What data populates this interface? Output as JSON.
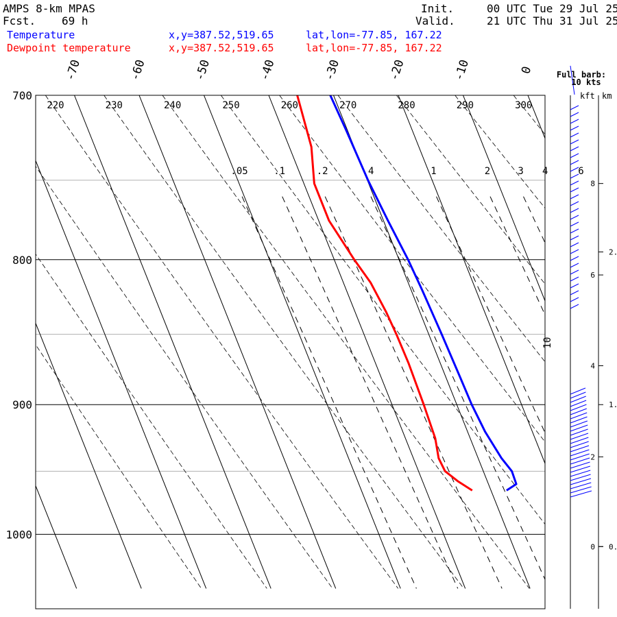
{
  "header": {
    "model": "AMPS 8-km MPAS",
    "fcst_label": "Fcst.",
    "fcst_hours": "69 h",
    "init_label": "Init.",
    "init_time": "00 UTC Tue 29 Jul 25",
    "valid_label": "Valid.",
    "valid_time": "21 UTC Thu 31 Jul 25"
  },
  "legend": [
    {
      "name": "Temperature",
      "xy": "x,y=387.52,519.65",
      "latlon": "lat,lon=-77.85, 167.22",
      "color": "#0000ff"
    },
    {
      "name": "Dewpoint temperature",
      "xy": "x,y=387.52,519.65",
      "latlon": "lat,lon=-77.85, 167.22",
      "color": "#ff0000"
    }
  ],
  "barb_note": {
    "line1": "Full barb:",
    "line2": "10 kts"
  },
  "alt_axes": {
    "kft_label": "kft",
    "km_label": "km"
  },
  "chart_data": {
    "type": "line",
    "diagram": "skew-T log-P",
    "pressure_axis": {
      "ticks": [
        700,
        800,
        900,
        1000
      ],
      "range": [
        1045,
        700
      ],
      "scale": "log"
    },
    "temp_ticks": [
      -70,
      -60,
      -50,
      -40,
      -30,
      -20,
      -10,
      0
    ],
    "dry_adiabat_labels": [
      220,
      230,
      240,
      250,
      260,
      270,
      280,
      290,
      300
    ],
    "mixing_ratio_labels": [
      ".05",
      ".1",
      ".2",
      ".4",
      "1",
      "2",
      "3",
      "4",
      "6",
      "10"
    ],
    "series": [
      {
        "name": "Temperature",
        "color": "#0000ff",
        "points": [
          [
            700,
            -30.5
          ],
          [
            720,
            -30.2
          ],
          [
            750,
            -29.9
          ],
          [
            775,
            -29.3
          ],
          [
            800,
            -28.6
          ],
          [
            820,
            -28.3
          ],
          [
            850,
            -28.0
          ],
          [
            880,
            -27.8
          ],
          [
            900,
            -27.7
          ],
          [
            920,
            -27.3
          ],
          [
            940,
            -26.4
          ],
          [
            950,
            -25.6
          ],
          [
            960,
            -25.7
          ],
          [
            965,
            -27.6
          ]
        ]
      },
      {
        "name": "Dewpoint temperature",
        "color": "#ff0000",
        "points": [
          [
            700,
            -35.6
          ],
          [
            730,
            -36.6
          ],
          [
            752,
            -38.4
          ],
          [
            775,
            -38.4
          ],
          [
            800,
            -36.9
          ],
          [
            815,
            -35.8
          ],
          [
            835,
            -35.2
          ],
          [
            850,
            -35.0
          ],
          [
            870,
            -34.9
          ],
          [
            900,
            -35.1
          ],
          [
            925,
            -35.4
          ],
          [
            940,
            -36.1
          ],
          [
            950,
            -35.9
          ],
          [
            958,
            -34.5
          ],
          [
            965,
            -32.9
          ]
        ]
      }
    ],
    "altitude_kft": [
      {
        "label": "8",
        "p": 752
      },
      {
        "label": "6",
        "p": 810
      },
      {
        "label": "4",
        "p": 872
      },
      {
        "label": "2",
        "p": 939
      },
      {
        "label": "0",
        "p": 1010
      }
    ],
    "altitude_km": [
      {
        "label": "2.",
        "p": 795
      },
      {
        "label": "1.",
        "p": 900
      },
      {
        "label": "0.",
        "p": 1010
      }
    ],
    "wind_profile": {
      "units": "kts",
      "full_barb": 10
    }
  }
}
